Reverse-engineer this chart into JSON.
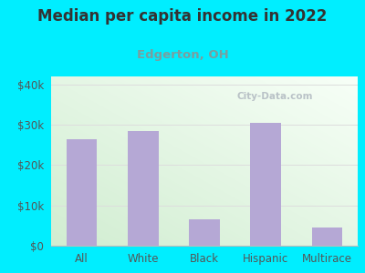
{
  "title": "Median per capita income in 2022",
  "subtitle": "Edgerton, OH",
  "categories": [
    "All",
    "White",
    "Black",
    "Hispanic",
    "Multirace"
  ],
  "values": [
    26500,
    28500,
    6500,
    30500,
    4500
  ],
  "bar_color": "#b5a8d5",
  "title_color": "#333333",
  "subtitle_color": "#7a9e9f",
  "bg_outer": "#00eeff",
  "ylim": [
    0,
    42000
  ],
  "yticks": [
    0,
    10000,
    20000,
    30000,
    40000
  ],
  "ytick_labels": [
    "$0",
    "$10k",
    "$20k",
    "$30k",
    "$40k"
  ],
  "tick_color": "#555555",
  "grid_color": "#dddddd",
  "watermark": "City-Data.com",
  "bar_width": 0.5
}
